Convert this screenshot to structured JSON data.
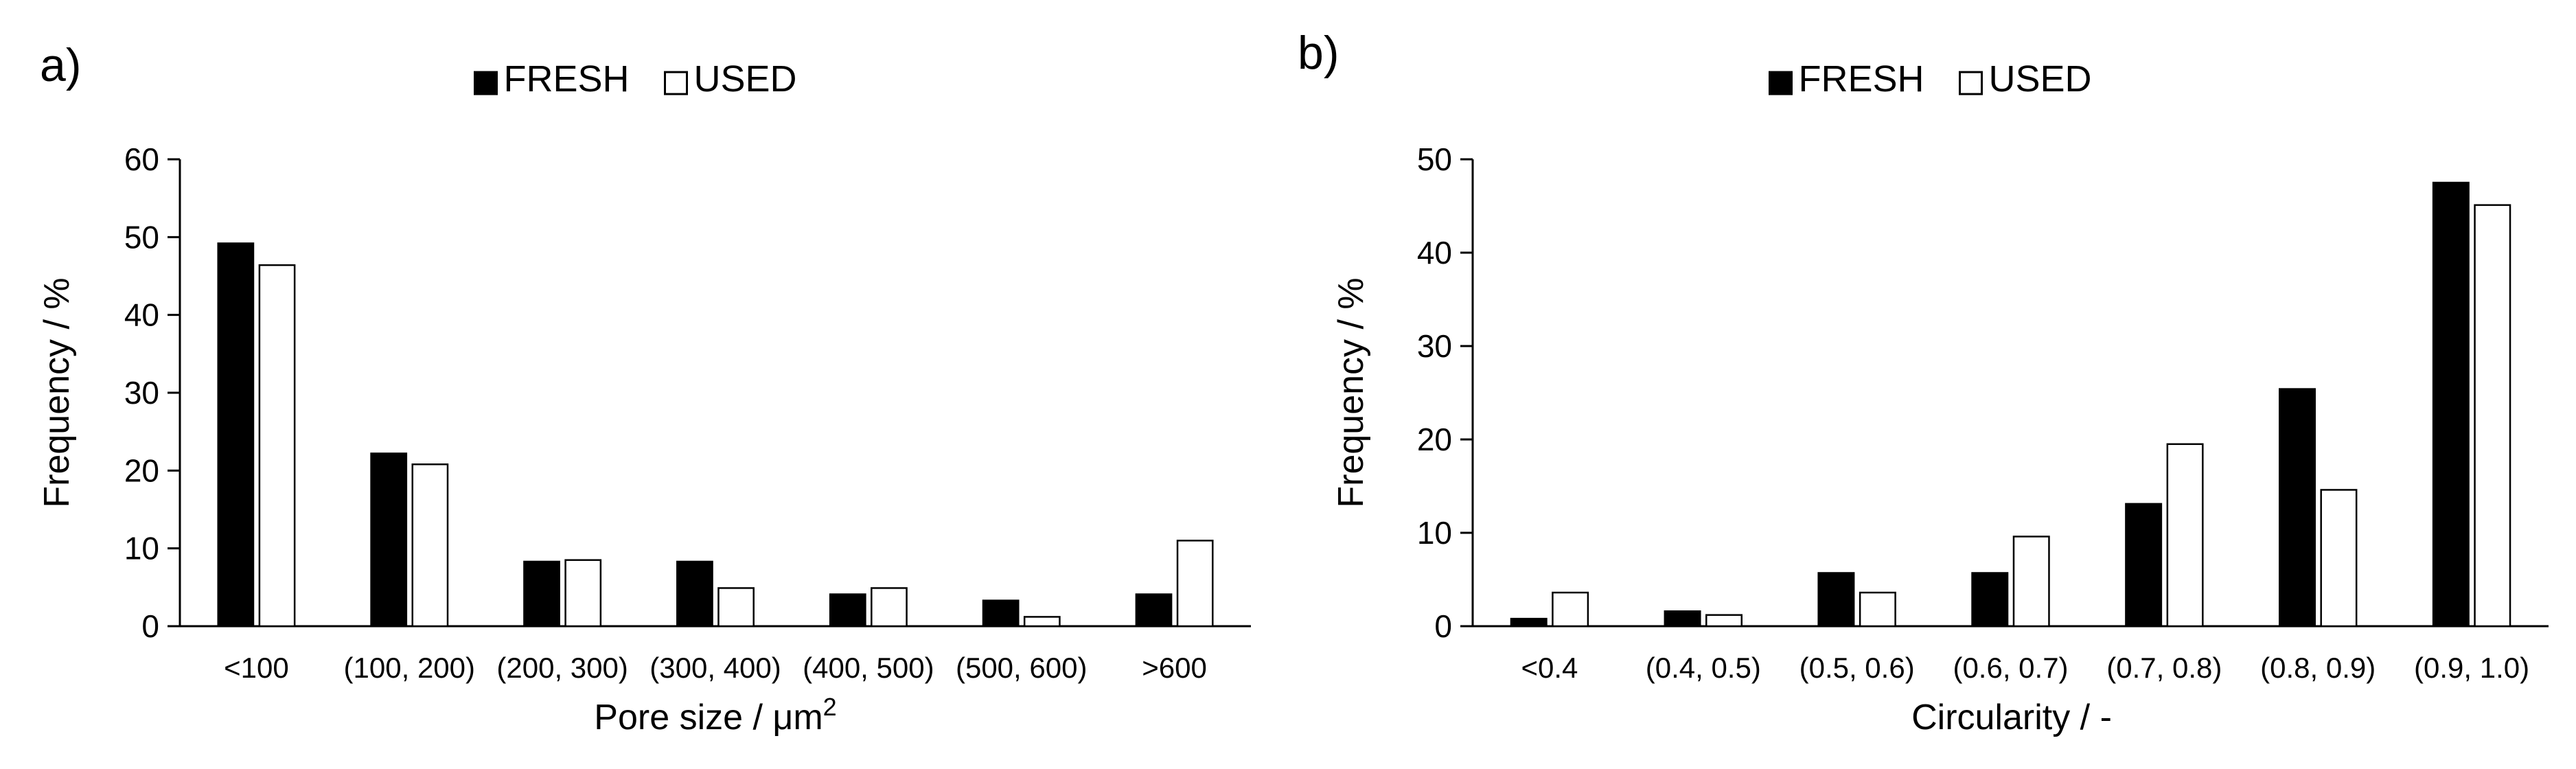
{
  "chart_data": [
    {
      "type": "bar",
      "panel_label": "a)",
      "xlabel_base": "Pore size / μm",
      "xlabel_sup": "2",
      "ylabel": "Frequency / %",
      "ylim": [
        0,
        60
      ],
      "yticks": [
        0,
        10,
        20,
        30,
        40,
        50,
        60
      ],
      "categories": [
        "<100",
        "(100, 200)",
        "(200, 300)",
        "(300, 400)",
        "(400, 500)",
        "(500, 600)",
        ">600"
      ],
      "series": [
        {
          "name": "FRESH",
          "color": "#000000",
          "values": [
            49.2,
            22.2,
            8.3,
            8.3,
            4.1,
            3.3,
            4.1
          ]
        },
        {
          "name": "USED",
          "color": "#ffffff",
          "values": [
            46.4,
            20.8,
            8.5,
            4.9,
            4.9,
            1.2,
            11.0
          ]
        }
      ],
      "grid": false,
      "legend_position": "top-center"
    },
    {
      "type": "bar",
      "panel_label": "b)",
      "xlabel": "Circularity / -",
      "ylabel": "Frequency / %",
      "ylim": [
        0,
        50
      ],
      "yticks": [
        0,
        10,
        20,
        30,
        40,
        50
      ],
      "categories": [
        "<0.4",
        "(0.4, 0.5)",
        "(0.5, 0.6)",
        "(0.6, 0.7)",
        "(0.7, 0.8)",
        "(0.8, 0.9)",
        "(0.9, 1.0)"
      ],
      "series": [
        {
          "name": "FRESH",
          "color": "#000000",
          "values": [
            0.8,
            1.6,
            5.7,
            5.7,
            13.1,
            25.4,
            47.5
          ]
        },
        {
          "name": "USED",
          "color": "#ffffff",
          "values": [
            3.6,
            1.2,
            3.6,
            9.6,
            19.5,
            14.6,
            45.1
          ]
        }
      ],
      "grid": false,
      "legend_position": "top-center"
    }
  ]
}
